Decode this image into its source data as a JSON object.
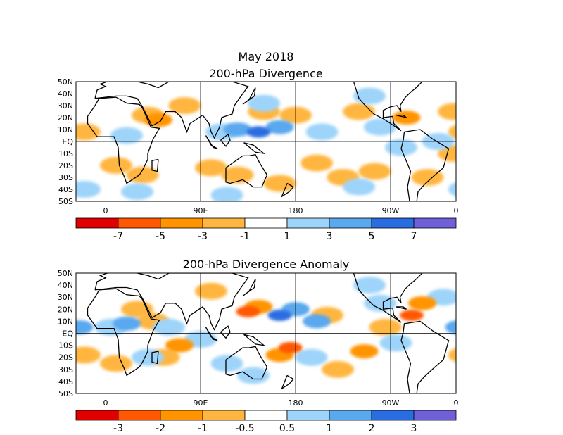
{
  "title": "May 2018",
  "colors": {
    "oranges": [
      "#e00000",
      "#ff5800",
      "#ff9400",
      "#ffb640"
    ],
    "blues": [
      "#9ed4fa",
      "#5aa8ee",
      "#2a6de0",
      "#7060d8"
    ],
    "land": "#000000",
    "frame": "#000000"
  },
  "lon_ticks": [
    "0",
    "90E",
    "180",
    "90W",
    "0"
  ],
  "lat_ticks": [
    "50N",
    "40N",
    "30N",
    "20N",
    "10N",
    "EQ",
    "10S",
    "20S",
    "30S",
    "40S",
    "50S"
  ],
  "panels": [
    {
      "title": "200-hPa Divergence",
      "colorbar_labels": [
        "-7",
        "-5",
        "-3",
        "-1",
        "1",
        "3",
        "5",
        "7"
      ],
      "features": [
        {
          "type": "div",
          "lon": 40,
          "lat": 22,
          "level": 1
        },
        {
          "type": "div",
          "lon": 50,
          "lat": 18,
          "level": 2
        },
        {
          "type": "div",
          "lon": 75,
          "lat": 30,
          "level": 1
        },
        {
          "type": "div",
          "lon": 150,
          "lat": 25,
          "level": 1
        },
        {
          "type": "div",
          "lon": 180,
          "lat": 22,
          "level": 1
        },
        {
          "type": "div",
          "lon": 240,
          "lat": 25,
          "level": 1
        },
        {
          "type": "div",
          "lon": 285,
          "lat": 20,
          "level": 2
        },
        {
          "type": "div",
          "lon": 330,
          "lat": 25,
          "level": 1
        },
        {
          "type": "div",
          "lon": 10,
          "lat": -20,
          "level": 1
        },
        {
          "type": "div",
          "lon": 35,
          "lat": -28,
          "level": 1
        },
        {
          "type": "div",
          "lon": 100,
          "lat": -22,
          "level": 1
        },
        {
          "type": "div",
          "lon": 125,
          "lat": -28,
          "level": 1
        },
        {
          "type": "div",
          "lon": 165,
          "lat": -35,
          "level": 1
        },
        {
          "type": "div",
          "lon": 200,
          "lat": -18,
          "level": 1
        },
        {
          "type": "div",
          "lon": 225,
          "lat": -30,
          "level": 1
        },
        {
          "type": "div",
          "lon": 255,
          "lat": -25,
          "level": 1
        },
        {
          "type": "div",
          "lon": 305,
          "lat": -30,
          "level": 1
        },
        {
          "type": "div",
          "lon": 330,
          "lat": -10,
          "level": 1
        },
        {
          "type": "div",
          "lon": 340,
          "lat": 8,
          "level": 1
        },
        {
          "type": "conv",
          "lon": 110,
          "lat": 8,
          "level": 1
        },
        {
          "type": "conv",
          "lon": 125,
          "lat": 10,
          "level": 2
        },
        {
          "type": "conv",
          "lon": 145,
          "lat": 8,
          "level": 3
        },
        {
          "type": "conv",
          "lon": 165,
          "lat": 12,
          "level": 2
        },
        {
          "type": "conv",
          "lon": 205,
          "lat": 8,
          "level": 1
        },
        {
          "type": "conv",
          "lon": 260,
          "lat": 12,
          "level": 1
        },
        {
          "type": "conv",
          "lon": 280,
          "lat": -5,
          "level": 1
        },
        {
          "type": "conv",
          "lon": 315,
          "lat": 0,
          "level": 1
        },
        {
          "type": "conv",
          "lon": 20,
          "lat": 5,
          "level": 1
        },
        {
          "type": "conv",
          "lon": 150,
          "lat": 32,
          "level": 1
        },
        {
          "type": "conv",
          "lon": 250,
          "lat": 38,
          "level": 1
        },
        {
          "type": "conv",
          "lon": 30,
          "lat": -42,
          "level": 1
        },
        {
          "type": "conv",
          "lon": 115,
          "lat": -45,
          "level": 1
        },
        {
          "type": "conv",
          "lon": 240,
          "lat": -38,
          "level": 1
        },
        {
          "type": "conv",
          "lon": 340,
          "lat": -40,
          "level": 1
        }
      ]
    },
    {
      "title": "200-hPa Divergence Anomaly",
      "colorbar_labels": [
        "-3",
        "-2",
        "-1",
        "-0.5",
        "0.5",
        "1",
        "2",
        "3"
      ],
      "features": [
        {
          "type": "div",
          "lon": 135,
          "lat": 18,
          "level": 3
        },
        {
          "type": "div",
          "lon": 145,
          "lat": 22,
          "level": 2
        },
        {
          "type": "div",
          "lon": 175,
          "lat": -12,
          "level": 3
        },
        {
          "type": "div",
          "lon": 165,
          "lat": -18,
          "level": 2
        },
        {
          "type": "div",
          "lon": 290,
          "lat": 15,
          "level": 3
        },
        {
          "type": "div",
          "lon": 300,
          "lat": 25,
          "level": 2
        },
        {
          "type": "div",
          "lon": 265,
          "lat": 5,
          "level": 1
        },
        {
          "type": "div",
          "lon": 245,
          "lat": -15,
          "level": 2
        },
        {
          "type": "div",
          "lon": 70,
          "lat": -10,
          "level": 2
        },
        {
          "type": "div",
          "lon": 55,
          "lat": -20,
          "level": 1
        },
        {
          "type": "div",
          "lon": 30,
          "lat": 20,
          "level": 1
        },
        {
          "type": "div",
          "lon": 45,
          "lat": 10,
          "level": 1
        },
        {
          "type": "div",
          "lon": 210,
          "lat": 15,
          "level": 1
        },
        {
          "type": "div",
          "lon": 220,
          "lat": -30,
          "level": 1
        },
        {
          "type": "div",
          "lon": 340,
          "lat": -18,
          "level": 1
        },
        {
          "type": "div",
          "lon": 10,
          "lat": -25,
          "level": 1
        },
        {
          "type": "div",
          "lon": 100,
          "lat": 35,
          "level": 1
        },
        {
          "type": "conv",
          "lon": 165,
          "lat": 15,
          "level": 3
        },
        {
          "type": "conv",
          "lon": 180,
          "lat": 20,
          "level": 2
        },
        {
          "type": "conv",
          "lon": 200,
          "lat": 10,
          "level": 2
        },
        {
          "type": "conv",
          "lon": 20,
          "lat": 8,
          "level": 2
        },
        {
          "type": "conv",
          "lon": 5,
          "lat": 5,
          "level": 1
        },
        {
          "type": "conv",
          "lon": 335,
          "lat": 5,
          "level": 2
        },
        {
          "type": "conv",
          "lon": 90,
          "lat": -5,
          "level": 1
        },
        {
          "type": "conv",
          "lon": 60,
          "lat": 5,
          "level": 1
        },
        {
          "type": "conv",
          "lon": 115,
          "lat": -25,
          "level": 1
        },
        {
          "type": "conv",
          "lon": 260,
          "lat": 25,
          "level": 1
        },
        {
          "type": "conv",
          "lon": 275,
          "lat": -8,
          "level": 1
        },
        {
          "type": "conv",
          "lon": 320,
          "lat": 30,
          "level": 1
        },
        {
          "type": "conv",
          "lon": 40,
          "lat": -20,
          "level": 1
        },
        {
          "type": "conv",
          "lon": 195,
          "lat": -20,
          "level": 1
        },
        {
          "type": "conv",
          "lon": 250,
          "lat": 40,
          "level": 1
        },
        {
          "type": "conv",
          "lon": 140,
          "lat": -35,
          "level": 1
        }
      ]
    }
  ]
}
